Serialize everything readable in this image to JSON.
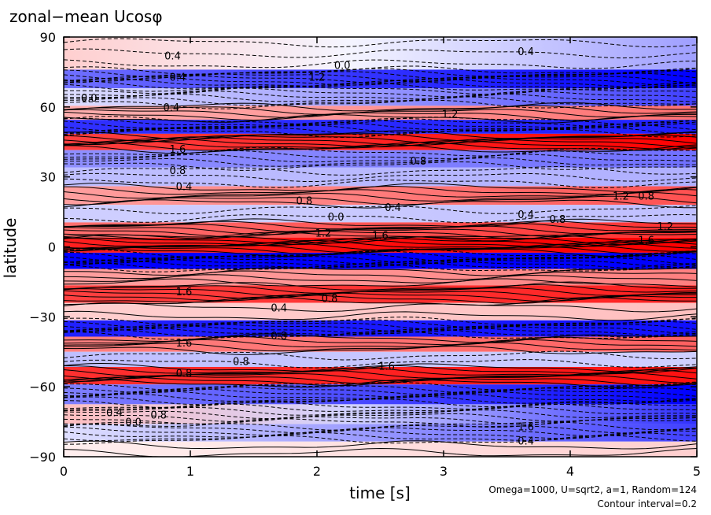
{
  "chart_data": {
    "type": "heatmap",
    "title": "zonal−mean Ucosφ",
    "xlabel": "time [s]",
    "ylabel": "latitude",
    "xlim": [
      0,
      5
    ],
    "ylim": [
      -90,
      90
    ],
    "x_ticks": [
      0,
      1,
      2,
      3,
      4,
      5
    ],
    "y_ticks": [
      -90,
      -60,
      -30,
      0,
      30,
      60,
      90
    ],
    "x_tick_labels": [
      "0",
      "1",
      "2",
      "3",
      "4",
      "5"
    ],
    "y_tick_labels": [
      "−90",
      "−60",
      "−30",
      "0",
      "30",
      "60",
      "90"
    ],
    "colors": {
      "positive": "#ff0000",
      "negative": "#0000ff",
      "zero": "#ffffff"
    },
    "bands": [
      {
        "lat": 80,
        "v0": 0.3,
        "v1": -0.6
      },
      {
        "lat": 72,
        "v0": -0.9,
        "v1": -1.8
      },
      {
        "lat": 64,
        "v0": -0.2,
        "v1": -1.2
      },
      {
        "lat": 57,
        "v0": 0.5,
        "v1": 0.9
      },
      {
        "lat": 52,
        "v0": -1.3,
        "v1": -1.4
      },
      {
        "lat": 45,
        "v0": 1.2,
        "v1": 1.6
      },
      {
        "lat": 38,
        "v0": -0.7,
        "v1": -0.9
      },
      {
        "lat": 30,
        "v0": -0.4,
        "v1": -0.5
      },
      {
        "lat": 22,
        "v0": 0.6,
        "v1": 1.1
      },
      {
        "lat": 14,
        "v0": -0.3,
        "v1": -0.4
      },
      {
        "lat": 7,
        "v0": 0.9,
        "v1": 1.3
      },
      {
        "lat": 1,
        "v0": 1.4,
        "v1": 1.7
      },
      {
        "lat": -6,
        "v0": -1.6,
        "v1": -1.7
      },
      {
        "lat": -13,
        "v0": 0.6,
        "v1": 0.8
      },
      {
        "lat": -20,
        "v0": 1.2,
        "v1": 1.4
      },
      {
        "lat": -28,
        "v0": 0.3,
        "v1": 0.4
      },
      {
        "lat": -35,
        "v0": -1.4,
        "v1": -1.5
      },
      {
        "lat": -42,
        "v0": 0.8,
        "v1": 1.0
      },
      {
        "lat": -48,
        "v0": -0.4,
        "v1": -0.3
      },
      {
        "lat": -55,
        "v0": 1.3,
        "v1": 1.5
      },
      {
        "lat": -63,
        "v0": -0.8,
        "v1": -1.6
      },
      {
        "lat": -72,
        "v0": 0.4,
        "v1": -1.3
      },
      {
        "lat": -80,
        "v0": -0.2,
        "v1": -1.2
      },
      {
        "lat": -87,
        "v0": 0.1,
        "v1": 0.3
      }
    ],
    "contour_labels": [
      {
        "text": "0.4",
        "t": 0.86,
        "lat": 82
      },
      {
        "text": "0.0",
        "t": 2.2,
        "lat": 78
      },
      {
        "text": "0.4",
        "t": 3.65,
        "lat": 84
      },
      {
        "text": "0.4",
        "t": 0.9,
        "lat": 73
      },
      {
        "text": "1.2",
        "t": 2.0,
        "lat": 73
      },
      {
        "text": "0.0",
        "t": 0.2,
        "lat": 64
      },
      {
        "text": "0.4",
        "t": 0.85,
        "lat": 60
      },
      {
        "text": "1.2",
        "t": 3.05,
        "lat": 57
      },
      {
        "text": "1.6",
        "t": 0.9,
        "lat": 42
      },
      {
        "text": "0.8",
        "t": 0.9,
        "lat": 33
      },
      {
        "text": "0.8",
        "t": 2.8,
        "lat": 37
      },
      {
        "text": "0.4",
        "t": 0.95,
        "lat": 26
      },
      {
        "text": "0.8",
        "t": 1.9,
        "lat": 20
      },
      {
        "text": "0.0",
        "t": 2.15,
        "lat": 13
      },
      {
        "text": "0.4",
        "t": 2.6,
        "lat": 17
      },
      {
        "text": "0.4",
        "t": 3.65,
        "lat": 14
      },
      {
        "text": "0.8",
        "t": 3.9,
        "lat": 12
      },
      {
        "text": "1.2",
        "t": 4.4,
        "lat": 22
      },
      {
        "text": "0.8",
        "t": 4.6,
        "lat": 22
      },
      {
        "text": "1.2",
        "t": 4.75,
        "lat": 9
      },
      {
        "text": "1.2",
        "t": 2.05,
        "lat": 6
      },
      {
        "text": "1.6",
        "t": 2.5,
        "lat": 5
      },
      {
        "text": "1.6",
        "t": 4.6,
        "lat": 3
      },
      {
        "text": "1.6",
        "t": 0.95,
        "lat": -19
      },
      {
        "text": "0.8",
        "t": 2.1,
        "lat": -22
      },
      {
        "text": "0.4",
        "t": 1.7,
        "lat": -26
      },
      {
        "text": "0.8",
        "t": 1.7,
        "lat": -38
      },
      {
        "text": "1.6",
        "t": 0.95,
        "lat": -41
      },
      {
        "text": "0.8",
        "t": 1.4,
        "lat": -49
      },
      {
        "text": "1.6",
        "t": 2.55,
        "lat": -51
      },
      {
        "text": "0.8",
        "t": 0.95,
        "lat": -54
      },
      {
        "text": "0.4",
        "t": 0.4,
        "lat": -71
      },
      {
        "text": "0.8",
        "t": 0.75,
        "lat": -72
      },
      {
        "text": "0.0",
        "t": 0.55,
        "lat": -75
      },
      {
        "text": "1.6",
        "t": 3.65,
        "lat": -77
      },
      {
        "text": "0.4",
        "t": 3.65,
        "lat": -83
      }
    ]
  },
  "footer": {
    "params": "Omega=1000, U=sqrt2, a=1, Random=124",
    "contour_interval": "Contour interval=0.2"
  }
}
